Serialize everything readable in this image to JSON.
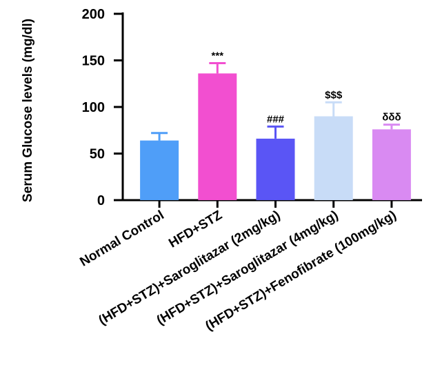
{
  "chart_data": {
    "type": "bar",
    "y_label": "Serum Glucose levels (mg/dl)",
    "categories": [
      "Normal Control",
      "HFD+STZ",
      "(HFD+STZ)+Saroglitazar (2mg/kg)",
      "(HFD+STZ)+Saroglitazar (4mg/kg)",
      "(HFD+STZ)+Fenofibrate (100mg/kg)"
    ],
    "values": [
      64,
      136,
      66,
      90,
      76
    ],
    "errors": [
      8,
      11,
      13,
      15,
      5
    ],
    "annotations": [
      null,
      "***",
      "###",
      "$$$",
      "δδδ"
    ],
    "colors": [
      "#4f9ef8",
      "#f24fd0",
      "#5a55f5",
      "#c8dcf7",
      "#d98af2"
    ],
    "ylim": [
      0,
      200
    ],
    "yticks": [
      0,
      50,
      100,
      150,
      200
    ]
  }
}
